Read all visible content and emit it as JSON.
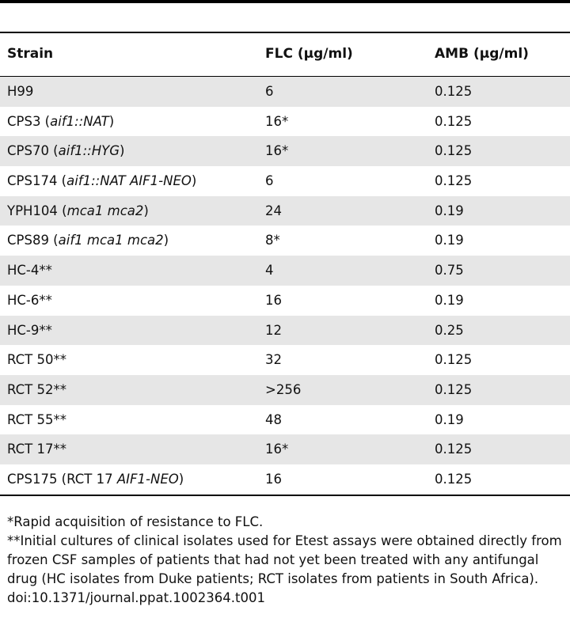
{
  "table": {
    "headers": {
      "strain": "Strain",
      "flc": "FLC (μg/ml)",
      "amb": "AMB (μg/ml)"
    },
    "rows": [
      {
        "strain": "H99",
        "flc": "6",
        "amb": "0.125"
      },
      {
        "strain": "CPS3 (aif1::NAT)",
        "flc": "16*",
        "amb": "0.125"
      },
      {
        "strain": "CPS70 (aif1::HYG)",
        "flc": "16*",
        "amb": "0.125"
      },
      {
        "strain": "CPS174 (aif1::NAT AIF1-NEO)",
        "flc": "6",
        "amb": "0.125"
      },
      {
        "strain": "YPH104 (mca1 mca2)",
        "flc": "24",
        "amb": "0.19"
      },
      {
        "strain": "CPS89 (aif1 mca1 mca2)",
        "flc": "8*",
        "amb": "0.19"
      },
      {
        "strain": "HC-4**",
        "flc": "4",
        "amb": "0.75"
      },
      {
        "strain": "HC-6**",
        "flc": "16",
        "amb": "0.19"
      },
      {
        "strain": "HC-9**",
        "flc": "12",
        "amb": "0.25"
      },
      {
        "strain": "RCT 50**",
        "flc": "32",
        "amb": "0.125"
      },
      {
        "strain": "RCT 52**",
        "flc": ">256",
        "amb": "0.125"
      },
      {
        "strain": "RCT 55**",
        "flc": "48",
        "amb": "0.19"
      },
      {
        "strain": "RCT 17**",
        "flc": "16*",
        "amb": "0.125"
      },
      {
        "strain": "CPS175 (RCT 17 AIF1-NEO)",
        "flc": "16",
        "amb": "0.125"
      }
    ]
  },
  "footnotes": {
    "note1": "*Rapid acquisition of resistance to FLC.",
    "note2": "**Initial cultures of clinical isolates used for Etest assays were obtained directly from frozen CSF samples of patients that had not yet been treated with any antifungal drug (HC isolates from Duke patients; RCT isolates from patients in South Africa).",
    "doi": "doi:10.1371/journal.ppat.1002364.t001"
  }
}
